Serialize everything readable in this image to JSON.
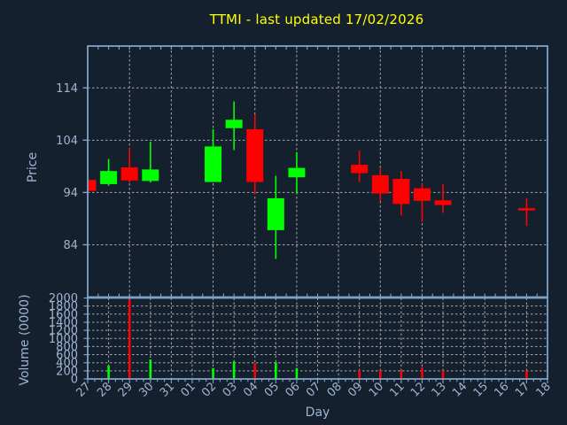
{
  "title": {
    "text": "TTMI - last updated 17/02/2026"
  },
  "colors": {
    "background": "#15202F",
    "title": "#FFFF00",
    "frame": "#7EA3C8",
    "tick_label": "#9EB5D0",
    "grid": "#A8A8A8",
    "up": "#00FF00",
    "down": "#FF0000"
  },
  "chart_data": {
    "type": "candlestick",
    "title": "TTMI - last updated 17/02/2026",
    "xlabel": "Day",
    "legend": "none",
    "grid": "on",
    "x_categories": [
      "27",
      "28",
      "29",
      "30",
      "31",
      "01",
      "02",
      "03",
      "04",
      "05",
      "06",
      "07",
      "08",
      "09",
      "10",
      "11",
      "12",
      "13",
      "14",
      "15",
      "16",
      "17",
      "18"
    ],
    "price_axis": {
      "label": "Price",
      "tick_values": [
        84,
        94,
        104,
        114
      ],
      "ylim": [
        74,
        122
      ],
      "vgrid_day_indices": [
        2,
        4,
        6,
        8,
        10,
        12,
        14,
        16,
        18,
        20,
        22
      ]
    },
    "volume_axis": {
      "label": "Volume (0000)",
      "tick_values": [
        0,
        200,
        400,
        600,
        800,
        1000,
        1200,
        1400,
        1600,
        1800,
        2000
      ],
      "ylim": [
        0,
        2000
      ]
    },
    "candles": [
      {
        "day": "27",
        "open": 96.4,
        "high": 96.4,
        "low": 94.3,
        "close": 94.3,
        "volume": 0,
        "direction": "down"
      },
      {
        "day": "28",
        "open": 95.6,
        "high": 100.4,
        "low": 95.3,
        "close": 98.1,
        "volume": 330,
        "direction": "up"
      },
      {
        "day": "29",
        "open": 98.8,
        "high": 102.5,
        "low": 95.9,
        "close": 96.3,
        "volume": 1960,
        "direction": "down"
      },
      {
        "day": "30",
        "open": 96.2,
        "high": 103.7,
        "low": 95.9,
        "close": 98.4,
        "volume": 480,
        "direction": "up"
      },
      {
        "day": "02",
        "open": 96.0,
        "high": 106.1,
        "low": 96.0,
        "close": 102.8,
        "volume": 270,
        "direction": "up"
      },
      {
        "day": "03",
        "open": 106.3,
        "high": 111.4,
        "low": 102.1,
        "close": 107.9,
        "volume": 430,
        "direction": "up"
      },
      {
        "day": "04",
        "open": 106.1,
        "high": 108.9,
        "low": 93.6,
        "close": 96.0,
        "volume": 390,
        "direction": "down"
      },
      {
        "day": "05",
        "open": 86.8,
        "high": 97.2,
        "low": 81.3,
        "close": 92.9,
        "volume": 410,
        "direction": "up"
      },
      {
        "day": "06",
        "open": 96.9,
        "high": 101.7,
        "low": 93.8,
        "close": 98.7,
        "volume": 270,
        "direction": "up"
      },
      {
        "day": "09",
        "open": 99.3,
        "high": 102.0,
        "low": 96.0,
        "close": 97.7,
        "volume": 215,
        "direction": "down"
      },
      {
        "day": "10",
        "open": 97.3,
        "high": 98.7,
        "low": 92.4,
        "close": 93.8,
        "volume": 215,
        "direction": "down"
      },
      {
        "day": "11",
        "open": 96.6,
        "high": 98.1,
        "low": 89.6,
        "close": 91.8,
        "volume": 215,
        "direction": "down"
      },
      {
        "day": "12",
        "open": 94.8,
        "high": 95.7,
        "low": 88.4,
        "close": 92.4,
        "volume": 290,
        "direction": "down"
      },
      {
        "day": "13",
        "open": 92.5,
        "high": 95.6,
        "low": 90.1,
        "close": 91.6,
        "volume": 205,
        "direction": "down"
      },
      {
        "day": "17",
        "open": 91.0,
        "high": 92.9,
        "low": 87.6,
        "close": 90.8,
        "volume": 205,
        "direction": "down"
      }
    ]
  }
}
